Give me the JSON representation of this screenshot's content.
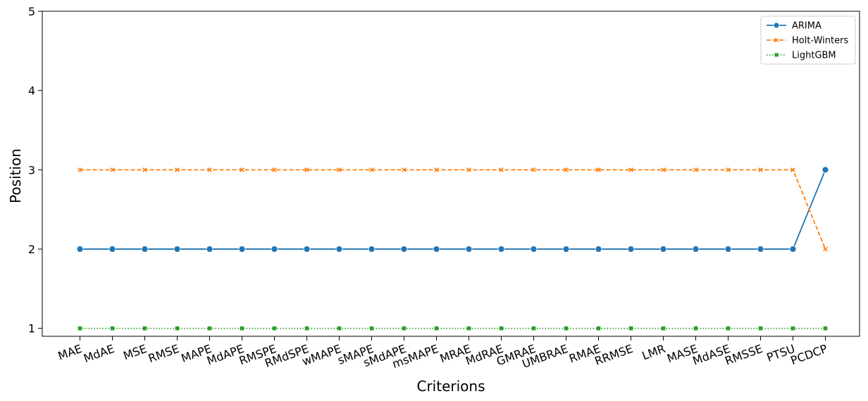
{
  "chart_data": {
    "type": "line",
    "title": "",
    "xlabel": "Criterions",
    "ylabel": "Position",
    "ylim": [
      0.9,
      5
    ],
    "yticks": [
      1,
      2,
      3,
      4,
      5
    ],
    "grid": false,
    "legend_position": "top-right",
    "categories": [
      "MAE",
      "MdAE",
      "MSE",
      "RMSE",
      "MAPE",
      "MdAPE",
      "RMSPE",
      "RMdSPE",
      "wMAPE",
      "sMAPE",
      "sMdAPE",
      "msMAPE",
      "MRAE",
      "MdRAE",
      "GMRAE",
      "UMBRAE",
      "RMAE",
      "RRMSE",
      "LMR",
      "MASE",
      "MdASE",
      "RMSSE",
      "PTSU",
      "PCDCP"
    ],
    "series": [
      {
        "name": "ARIMA",
        "color": "#1f77b4",
        "marker": "circle",
        "linestyle": "solid",
        "values": [
          2,
          2,
          2,
          2,
          2,
          2,
          2,
          2,
          2,
          2,
          2,
          2,
          2,
          2,
          2,
          2,
          2,
          2,
          2,
          2,
          2,
          2,
          2,
          3
        ]
      },
      {
        "name": "Holt-Winters",
        "color": "#ff7f0e",
        "marker": "x",
        "linestyle": "dashed",
        "values": [
          3,
          3,
          3,
          3,
          3,
          3,
          3,
          3,
          3,
          3,
          3,
          3,
          3,
          3,
          3,
          3,
          3,
          3,
          3,
          3,
          3,
          3,
          3,
          2
        ]
      },
      {
        "name": "LightGBM",
        "color": "#2ca02c",
        "marker": "square",
        "linestyle": "dotted",
        "values": [
          1,
          1,
          1,
          1,
          1,
          1,
          1,
          1,
          1,
          1,
          1,
          1,
          1,
          1,
          1,
          1,
          1,
          1,
          1,
          1,
          1,
          1,
          1,
          1
        ]
      }
    ]
  }
}
